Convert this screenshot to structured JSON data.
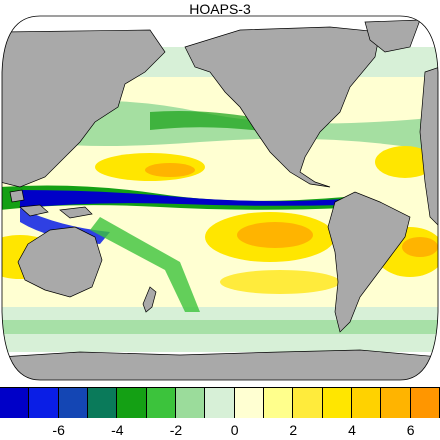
{
  "title": "HOAPS-3",
  "colorbar": {
    "colors": [
      "#0000c8",
      "#0a1ee6",
      "#1446b4",
      "#0a7a5a",
      "#14a014",
      "#3cc33c",
      "#9bdc9b",
      "#d7f0d7",
      "#ffffd2",
      "#ffff8c",
      "#ffeb3c",
      "#ffe600",
      "#ffd200",
      "#ffb400",
      "#ff9600"
    ],
    "tick_labels": [
      "-6",
      "-4",
      "-2",
      "0",
      "2",
      "4",
      "6"
    ]
  },
  "palette": {
    "land": "#a9a9a9",
    "coast": "#000000",
    "ocean_base": "#ffffd2",
    "wet_strong": "#0000c8",
    "wet": "#14a014",
    "wet_light": "#9bdc9b",
    "dry": "#ffe600",
    "dry_strong": "#ffb400"
  }
}
